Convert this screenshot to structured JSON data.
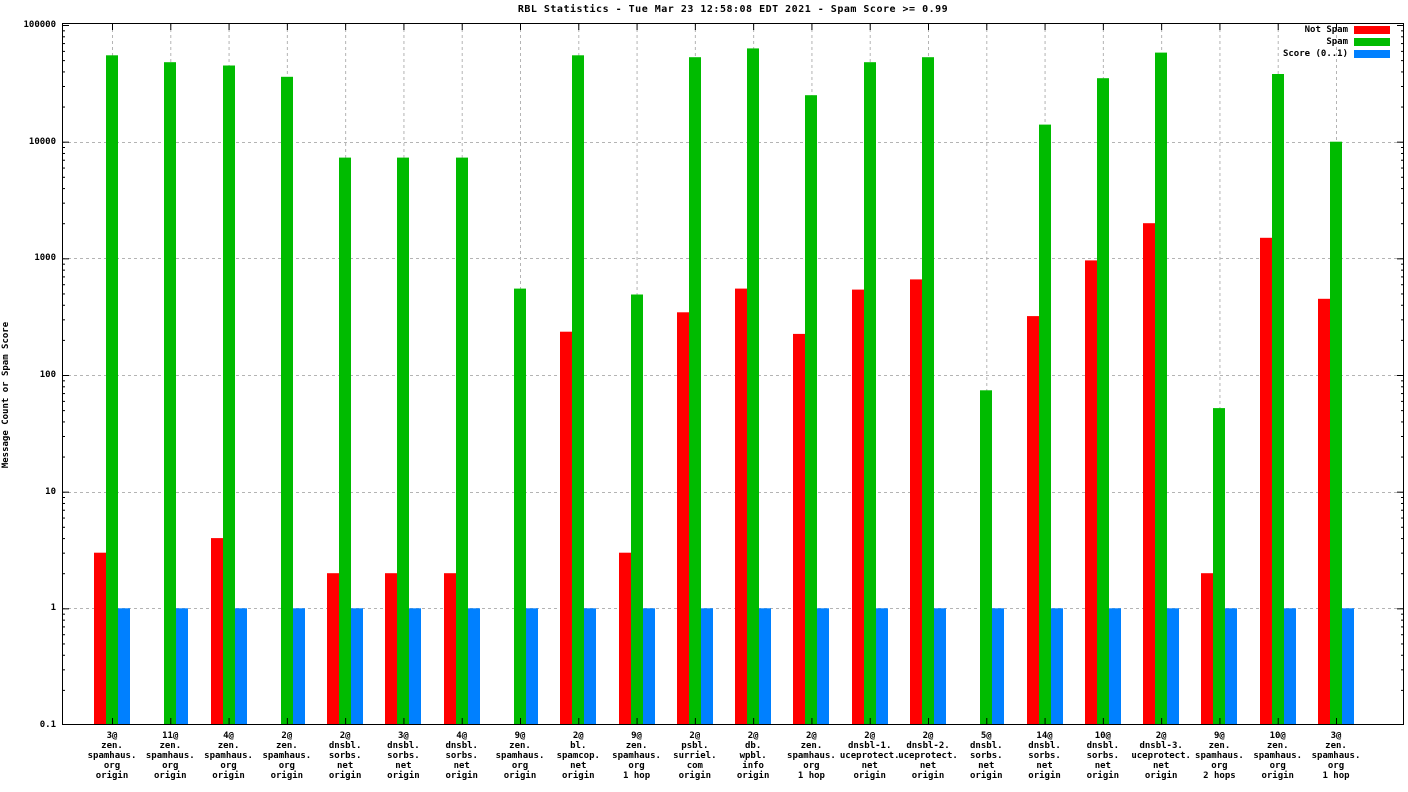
{
  "title": "RBL Statistics - Tue Mar 23 12:58:08 EDT 2021 - Spam Score >= 0.99",
  "ylabel": "Message Count or Spam Score",
  "legend": [
    {
      "label": "Not Spam",
      "color": "#ff0000"
    },
    {
      "label": "Spam",
      "color": "#00bb00"
    },
    {
      "label": "Score (0..1)",
      "color": "#0080ff"
    }
  ],
  "colors": {
    "grid": "#b4b4b4",
    "border": "#000000",
    "background": "#ffffff"
  },
  "chart_data": {
    "type": "bar",
    "scale": "log",
    "title": "RBL Statistics - Tue Mar 23 12:58:08 EDT 2021 - Spam Score >= 0.99",
    "xlabel": "",
    "ylabel": "Message Count or Spam Score",
    "ylim": [
      0.1,
      100000
    ],
    "yticks": [
      0.1,
      1,
      10,
      100,
      1000,
      10000,
      100000
    ],
    "grid": true,
    "legend_position": "top-right",
    "categories": [
      [
        "3@",
        "zen.",
        "spamhaus.",
        "org",
        "origin"
      ],
      [
        "11@",
        "zen.",
        "spamhaus.",
        "org",
        "origin"
      ],
      [
        "4@",
        "zen.",
        "spamhaus.",
        "org",
        "origin"
      ],
      [
        "2@",
        "zen.",
        "spamhaus.",
        "org",
        "origin"
      ],
      [
        "2@",
        "dnsbl.",
        "sorbs.",
        "net",
        "origin"
      ],
      [
        "3@",
        "dnsbl.",
        "sorbs.",
        "net",
        "origin"
      ],
      [
        "4@",
        "dnsbl.",
        "sorbs.",
        "net",
        "origin"
      ],
      [
        "9@",
        "zen.",
        "spamhaus.",
        "org",
        "origin"
      ],
      [
        "2@",
        "bl.",
        "spamcop.",
        "net",
        "origin"
      ],
      [
        "9@",
        "zen.",
        "spamhaus.",
        "org",
        "1 hop"
      ],
      [
        "2@",
        "psbl.",
        "surriel.",
        "com",
        "origin"
      ],
      [
        "2@",
        "db.",
        "wpbl.",
        "info",
        "origin"
      ],
      [
        "2@",
        "zen.",
        "spamhaus.",
        "org",
        "1 hop"
      ],
      [
        "2@",
        "dnsbl-1.",
        "uceprotect.",
        "net",
        "origin"
      ],
      [
        "2@",
        "dnsbl-2.",
        "uceprotect.",
        "net",
        "origin"
      ],
      [
        "5@",
        "dnsbl.",
        "sorbs.",
        "net",
        "origin"
      ],
      [
        "14@",
        "dnsbl.",
        "sorbs.",
        "net",
        "origin"
      ],
      [
        "10@",
        "dnsbl.",
        "sorbs.",
        "net",
        "origin"
      ],
      [
        "2@",
        "dnsbl-3.",
        "uceprotect.",
        "net",
        "origin"
      ],
      [
        "9@",
        "zen.",
        "spamhaus.",
        "org",
        "2 hops"
      ],
      [
        "10@",
        "zen.",
        "spamhaus.",
        "org",
        "origin"
      ],
      [
        "3@",
        "zen.",
        "spamhaus.",
        "org",
        "1 hop"
      ]
    ],
    "series": [
      {
        "name": "Not Spam",
        "color": "#ff0000",
        "values": [
          3,
          0,
          4,
          0,
          2,
          2,
          2,
          0,
          235,
          3,
          345,
          550,
          225,
          540,
          660,
          0,
          320,
          960,
          2000,
          2,
          1500,
          450
        ]
      },
      {
        "name": "Spam",
        "color": "#00bb00",
        "values": [
          55000,
          48000,
          45000,
          36000,
          7300,
          7300,
          7300,
          550,
          55000,
          490,
          53000,
          63000,
          25000,
          48000,
          53000,
          74,
          14000,
          35000,
          58000,
          52,
          38000,
          10000
        ]
      },
      {
        "name": "Score (0..1)",
        "color": "#0080ff",
        "values": [
          1,
          1,
          1,
          1,
          1,
          1,
          1,
          1,
          1,
          1,
          1,
          1,
          1,
          1,
          1,
          1,
          1,
          1,
          1,
          1,
          1,
          1
        ]
      }
    ]
  }
}
